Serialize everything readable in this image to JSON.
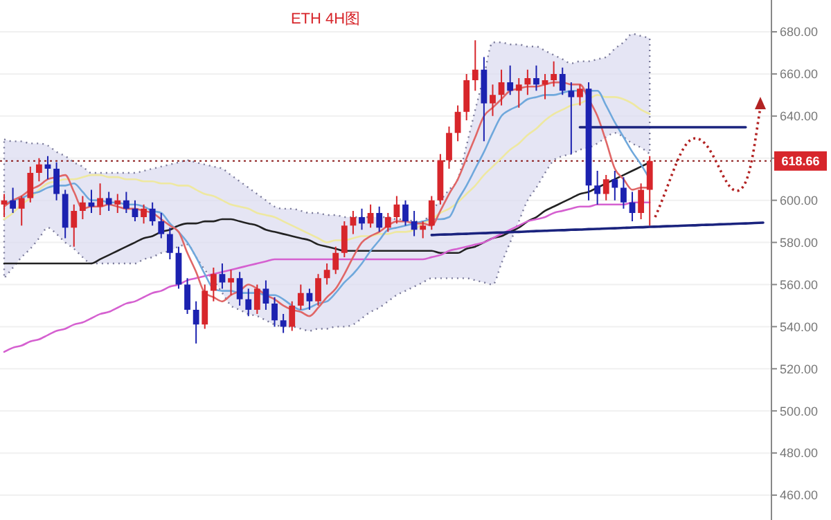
{
  "chart_data": {
    "type": "candlestick",
    "title": "ETH  4H图",
    "categories": [
      null,
      null,
      null,
      null,
      null,
      null,
      null,
      null,
      null,
      null,
      null,
      null,
      null,
      null,
      null,
      null,
      null,
      null,
      null,
      null,
      null,
      null,
      null,
      null,
      null,
      null,
      null,
      null,
      null,
      null,
      null,
      null,
      null,
      null,
      null,
      null,
      null,
      null,
      null,
      null,
      null,
      null,
      null,
      null,
      null,
      null,
      null,
      null,
      null,
      null,
      null,
      null,
      null,
      null,
      null,
      null,
      null,
      null,
      null,
      null,
      null,
      null,
      null,
      null,
      null,
      null,
      null,
      null,
      null,
      null,
      null,
      null,
      null,
      null,
      null,
      null,
      null,
      null,
      null,
      null,
      null,
      null,
      null,
      null,
      null,
      null,
      null,
      null
    ],
    "ylim": [
      448.2,
      695.1
    ],
    "yticks": [
      {
        "value": 460,
        "label": "460.00"
      },
      {
        "value": 480,
        "label": "480.00"
      },
      {
        "value": 500,
        "label": "500.00"
      },
      {
        "value": 520,
        "label": "520.00"
      },
      {
        "value": 540,
        "label": "540.00"
      },
      {
        "value": 560,
        "label": "560.00"
      },
      {
        "value": 580,
        "label": "580.00"
      },
      {
        "value": 600,
        "label": "600.00"
      },
      {
        "value": 620,
        "label": null
      },
      {
        "value": 640,
        "label": "640.00"
      },
      {
        "value": 660,
        "label": "660.00"
      },
      {
        "value": 680,
        "label": "680.00"
      }
    ],
    "grid": "y",
    "tick_labels": "y",
    "ref_lines": [
      {
        "axis": "y",
        "value": 618.66,
        "label": "618.66",
        "color": "#8b1a1a",
        "line_style": "dotted"
      }
    ],
    "series": [
      {
        "type": "line",
        "color": "#eee8a0",
        "values": [
          591,
          594,
          598,
          601,
          605,
          608,
          609,
          610,
          610,
          611,
          612,
          612,
          611,
          611,
          610,
          610,
          609,
          609,
          608,
          608,
          607,
          607,
          605,
          603,
          602,
          600,
          598,
          597,
          596,
          594,
          593,
          592,
          590,
          588,
          586,
          584,
          582,
          580,
          581,
          581,
          582,
          583,
          583,
          584,
          584,
          585,
          585,
          586,
          589,
          591,
          594,
          596,
          599,
          603,
          607,
          612,
          616,
          620,
          624,
          627,
          631,
          634,
          638,
          641,
          643,
          645,
          646,
          648,
          650,
          649,
          649,
          648,
          646,
          643,
          641,
          null,
          null,
          null,
          null,
          null,
          null,
          null,
          null,
          null,
          null,
          null,
          null,
          null
        ],
        "lower": [
          563,
          568,
          573,
          577,
          582,
          587,
          584,
          580,
          577,
          573,
          570,
          570,
          570,
          570,
          570,
          570,
          572,
          573,
          575,
          576,
          578,
          579,
          573,
          567,
          562,
          556,
          550,
          548,
          546,
          545,
          543,
          541,
          540,
          540,
          539,
          538,
          539,
          539,
          540,
          540,
          541,
          544,
          547,
          549,
          552,
          555,
          557,
          559,
          561,
          563,
          563,
          563,
          563,
          563,
          562,
          561,
          560,
          570,
          580,
          590,
          600,
          606,
          613,
          619,
          621,
          622,
          624,
          625,
          627,
          630,
          632,
          630,
          627,
          625,
          622,
          null,
          null,
          null,
          null,
          null,
          null,
          null,
          null,
          null,
          null,
          null,
          null,
          null
        ],
        "upper": [
          629,
          628,
          628,
          627,
          627,
          626,
          623,
          621,
          618,
          616,
          613,
          613,
          613,
          613,
          613,
          613,
          614,
          615,
          616,
          617,
          618,
          619,
          618,
          617,
          616,
          615,
          612,
          609,
          606,
          603,
          600,
          597,
          596,
          596,
          595,
          594,
          594,
          593,
          593,
          592,
          592,
          592,
          592,
          592,
          592,
          591,
          591,
          590,
          590,
          595,
          600,
          605,
          610,
          626,
          643,
          659,
          675,
          675,
          674,
          674,
          673,
          673,
          671,
          669,
          667,
          665,
          666,
          666,
          667,
          668,
          672,
          675,
          679,
          678,
          677,
          null,
          null,
          null,
          null,
          null,
          null,
          null,
          null,
          null,
          null,
          null,
          null,
          null
        ]
      },
      {
        "type": "line",
        "color": "#222222",
        "values": [
          570,
          570,
          570,
          570,
          570,
          570,
          570,
          570,
          570,
          570,
          570,
          572,
          574,
          576,
          578,
          580,
          582,
          583,
          585,
          586,
          588,
          589,
          589,
          590,
          590,
          591,
          591,
          590,
          589,
          588,
          586,
          585,
          584,
          583,
          582,
          581,
          579,
          578,
          577,
          576,
          576,
          576,
          576,
          576,
          576,
          576,
          576,
          576,
          576,
          576,
          575,
          575,
          575,
          577,
          578,
          580,
          582,
          583,
          585,
          587,
          590,
          592,
          595,
          597,
          599,
          601,
          603,
          604,
          606,
          608,
          610,
          612,
          614,
          616,
          618,
          null,
          null,
          null,
          null,
          null,
          null,
          null,
          null,
          null,
          null,
          null,
          null,
          null
        ]
      },
      {
        "type": "line",
        "color": "#d560d0",
        "values": [
          528,
          530,
          531,
          533,
          534,
          536,
          538,
          539,
          541,
          542,
          544,
          546,
          547,
          549,
          551,
          552,
          554,
          556,
          557,
          559,
          560,
          562,
          563,
          564,
          565,
          566,
          567,
          568,
          569,
          570,
          571,
          572,
          572,
          572,
          572,
          572,
          572,
          572,
          572,
          572,
          572,
          572,
          572,
          572,
          572,
          572,
          572,
          572,
          572,
          573,
          574,
          576,
          577,
          578,
          579,
          580,
          582,
          584,
          586,
          588,
          590,
          591,
          592,
          594,
          595,
          596,
          597,
          597,
          598,
          598,
          598,
          598,
          599,
          599,
          599,
          null,
          null,
          null,
          null,
          null,
          null,
          null,
          null,
          null,
          null,
          null,
          null,
          null
        ]
      },
      {
        "type": "line",
        "color": "#6fa8dc",
        "values": [
          598,
          600,
          601,
          603,
          604,
          606,
          607,
          607,
          608,
          604,
          600,
          600,
          599,
          599,
          598,
          598,
          597,
          595,
          594,
          589,
          585,
          580,
          573,
          565,
          558,
          557,
          557,
          556,
          556,
          556,
          555,
          555,
          553,
          550,
          548,
          549,
          551,
          552,
          556,
          561,
          565,
          570,
          576,
          581,
          586,
          587,
          588,
          589,
          590,
          591,
          591,
          592,
          600,
          607,
          615,
          623,
          632,
          640,
          643,
          645,
          648,
          649,
          650,
          650,
          651,
          652,
          652,
          652,
          652,
          645,
          637,
          630,
          623,
          617,
          610,
          null,
          null,
          null,
          null,
          null,
          null,
          null,
          null,
          null,
          null,
          null,
          null,
          null
        ]
      },
      {
        "type": "line",
        "color": "#e06666",
        "values": [
          597,
          600,
          602,
          605,
          607,
          610,
          611,
          612,
          604,
          596,
          597,
          597,
          598,
          597,
          596,
          596,
          595,
          594,
          591,
          588,
          585,
          575,
          566,
          556,
          554,
          552,
          555,
          557,
          560,
          558,
          555,
          553,
          550,
          548,
          547,
          545,
          549,
          554,
          558,
          565,
          573,
          580,
          583,
          585,
          588,
          590,
          590,
          589,
          589,
          588,
          595,
          603,
          610,
          620,
          630,
          640,
          644,
          648,
          652,
          653,
          654,
          654,
          655,
          656,
          656,
          655,
          655,
          648,
          640,
          628,
          615,
          610,
          605,
          606,
          606,
          null,
          null,
          null,
          null,
          null,
          null,
          null,
          null,
          null,
          null,
          null,
          null,
          null
        ]
      },
      {
        "type": "line",
        "color": "#1a237e",
        "values": [
          null,
          null,
          null,
          null,
          null,
          null,
          null,
          null,
          null,
          null,
          null,
          null,
          null,
          null,
          null,
          null,
          null,
          null,
          null,
          null,
          null,
          null,
          null,
          null,
          null,
          null,
          null,
          null,
          null,
          null,
          null,
          null,
          null,
          null,
          null,
          null,
          null,
          null,
          null,
          null,
          null,
          null,
          null,
          null,
          null,
          null,
          null,
          null,
          null,
          null,
          null,
          null,
          null,
          null,
          null,
          null,
          null,
          null,
          null,
          null,
          null,
          null,
          null,
          null,
          null,
          null,
          634.7,
          634.7,
          634.7,
          634.7,
          634.7,
          634.7,
          634.7,
          634.7,
          634.7,
          634.7,
          634.7,
          634.7,
          634.7,
          634.7,
          634.7,
          634.7,
          634.7,
          634.7,
          634.7,
          634.7,
          null,
          null
        ]
      },
      {
        "type": "line",
        "color": "#1a237e",
        "values": [
          null,
          null,
          null,
          null,
          null,
          null,
          null,
          null,
          null,
          null,
          null,
          null,
          null,
          null,
          null,
          null,
          null,
          null,
          null,
          null,
          null,
          null,
          null,
          null,
          null,
          null,
          null,
          null,
          null,
          null,
          null,
          null,
          null,
          null,
          null,
          null,
          null,
          null,
          null,
          null,
          null,
          null,
          null,
          null,
          null,
          null,
          null,
          null,
          null,
          583.5,
          583.7,
          583.8,
          584.0,
          584.1,
          584.3,
          584.4,
          584.6,
          584.7,
          584.9,
          585.0,
          585.2,
          585.4,
          585.5,
          585.7,
          585.8,
          586.0,
          586.1,
          586.3,
          586.4,
          586.6,
          586.7,
          586.9,
          587.1,
          587.2,
          587.4,
          587.5,
          587.7,
          587.8,
          588.0,
          588.1,
          588.3,
          588.4,
          588.6,
          588.7,
          588.9,
          589.0,
          589.2,
          589.4
        ]
      },
      {
        "ohlc": [
          [
            598,
            603,
            592,
            600
          ],
          [
            600,
            606,
            594,
            596
          ],
          [
            596,
            602,
            588,
            601
          ],
          [
            601,
            616,
            599,
            613
          ],
          [
            613,
            620,
            609,
            617
          ],
          [
            617,
            621,
            610,
            615
          ],
          [
            615,
            618,
            600,
            603
          ],
          [
            603,
            605,
            582,
            587
          ],
          [
            587,
            598,
            578,
            595
          ],
          [
            595,
            602,
            591,
            599
          ],
          [
            599,
            605,
            594,
            597
          ],
          [
            597,
            608,
            593,
            601
          ],
          [
            601,
            604,
            595,
            598
          ],
          [
            598,
            603,
            594,
            600
          ],
          [
            600,
            604,
            594,
            596
          ],
          [
            596,
            600,
            590,
            592
          ],
          [
            592,
            598,
            589,
            596
          ],
          [
            596,
            599,
            588,
            590
          ],
          [
            590,
            594,
            582,
            584
          ],
          [
            584,
            587,
            572,
            575
          ],
          [
            575,
            578,
            558,
            560
          ],
          [
            560,
            563,
            546,
            548
          ],
          [
            548,
            552,
            532,
            541
          ],
          [
            541,
            560,
            539,
            557
          ],
          [
            557,
            568,
            552,
            565
          ],
          [
            565,
            570,
            558,
            561
          ],
          [
            561,
            567,
            555,
            563
          ],
          [
            563,
            566,
            550,
            553
          ],
          [
            553,
            558,
            545,
            548
          ],
          [
            548,
            560,
            546,
            558
          ],
          [
            558,
            562,
            548,
            551
          ],
          [
            551,
            554,
            540,
            543
          ],
          [
            543,
            546,
            537,
            540
          ],
          [
            540,
            552,
            538,
            550
          ],
          [
            550,
            560,
            548,
            556
          ],
          [
            556,
            558,
            548,
            552
          ],
          [
            552,
            565,
            550,
            563
          ],
          [
            563,
            570,
            560,
            567
          ],
          [
            567,
            578,
            565,
            575
          ],
          [
            575,
            590,
            573,
            588
          ],
          [
            588,
            595,
            584,
            592
          ],
          [
            592,
            596,
            586,
            589
          ],
          [
            589,
            598,
            587,
            594
          ],
          [
            594,
            597,
            585,
            587
          ],
          [
            587,
            594,
            585,
            592
          ],
          [
            592,
            602,
            589,
            598
          ],
          [
            598,
            600,
            588,
            590
          ],
          [
            590,
            595,
            583,
            586
          ],
          [
            586,
            590,
            582,
            588
          ],
          [
            588,
            602,
            586,
            600
          ],
          [
            600,
            622,
            598,
            619
          ],
          [
            619,
            635,
            615,
            632
          ],
          [
            632,
            645,
            628,
            642
          ],
          [
            642,
            660,
            638,
            657
          ],
          [
            657,
            676,
            652,
            662
          ],
          [
            662,
            668,
            628,
            646
          ],
          [
            646,
            655,
            640,
            650
          ],
          [
            650,
            662,
            645,
            656
          ],
          [
            656,
            664,
            650,
            652
          ],
          [
            652,
            658,
            644,
            655
          ],
          [
            655,
            662,
            650,
            658
          ],
          [
            658,
            664,
            652,
            655
          ],
          [
            655,
            660,
            648,
            657
          ],
          [
            657,
            666,
            654,
            660
          ],
          [
            660,
            663,
            650,
            652
          ],
          [
            652,
            656,
            622,
            649
          ],
          [
            649,
            655,
            645,
            653
          ],
          [
            653,
            656,
            600,
            607
          ],
          [
            607,
            614,
            598,
            603
          ],
          [
            603,
            612,
            600,
            610
          ],
          [
            610,
            614,
            600,
            606
          ],
          [
            606,
            611,
            596,
            599
          ],
          [
            599,
            604,
            590,
            594
          ],
          [
            594,
            608,
            591,
            605
          ],
          [
            605,
            621,
            588,
            618.66
          ],
          null,
          null,
          null,
          null,
          null,
          null,
          null,
          null,
          null,
          null,
          null,
          null,
          null
        ],
        "colors": [
          "#d7262b",
          "#1c22b0",
          "#d7262b",
          "#d7262b",
          "#d7262b",
          "#1c22b0",
          "#1c22b0",
          "#1c22b0",
          "#d7262b",
          "#d7262b",
          "#1c22b0",
          "#d7262b",
          "#1c22b0",
          "#d7262b",
          "#1c22b0",
          "#1c22b0",
          "#d7262b",
          "#1c22b0",
          "#1c22b0",
          "#1c22b0",
          "#1c22b0",
          "#1c22b0",
          "#1c22b0",
          "#d7262b",
          "#d7262b",
          "#1c22b0",
          "#d7262b",
          "#1c22b0",
          "#1c22b0",
          "#d7262b",
          "#1c22b0",
          "#1c22b0",
          "#1c22b0",
          "#d7262b",
          "#d7262b",
          "#1c22b0",
          "#d7262b",
          "#d7262b",
          "#d7262b",
          "#d7262b",
          "#d7262b",
          "#1c22b0",
          "#d7262b",
          "#1c22b0",
          "#d7262b",
          "#d7262b",
          "#1c22b0",
          "#1c22b0",
          "#d7262b",
          "#d7262b",
          "#d7262b",
          "#d7262b",
          "#d7262b",
          "#d7262b",
          "#d7262b",
          "#1c22b0",
          "#d7262b",
          "#d7262b",
          "#1c22b0",
          "#d7262b",
          "#d7262b",
          "#1c22b0",
          "#d7262b",
          "#d7262b",
          "#1c22b0",
          "#1c22b0",
          "#d7262b",
          "#1c22b0",
          "#1c22b0",
          "#d7262b",
          "#1c22b0",
          "#1c22b0",
          "#1c22b0",
          "#d7262b",
          "#d7262b",
          null,
          null,
          null,
          null,
          null,
          null,
          null,
          null,
          null,
          null,
          null,
          null,
          null
        ]
      }
    ]
  }
}
